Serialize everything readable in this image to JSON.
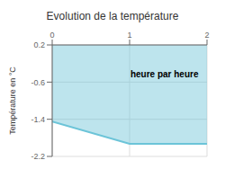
{
  "chart_data": {
    "type": "area",
    "title": "Evolution de la température",
    "ylabel": "Température en °C",
    "x": [
      0,
      1.0,
      2
    ],
    "values": [
      -1.45,
      -1.93,
      -1.93
    ],
    "fill_top": 0.2,
    "color": "#6cc4d8",
    "xlim": [
      0,
      2
    ],
    "ylim": [
      -2.2,
      0.2
    ],
    "xticks": [
      0,
      1,
      2
    ],
    "yticks": [
      0.2,
      -0.6,
      -1.4,
      -2.2
    ],
    "grid": true,
    "annotations": [
      {
        "text": "heure par heure",
        "x": 1.45,
        "y": -0.42
      }
    ]
  }
}
